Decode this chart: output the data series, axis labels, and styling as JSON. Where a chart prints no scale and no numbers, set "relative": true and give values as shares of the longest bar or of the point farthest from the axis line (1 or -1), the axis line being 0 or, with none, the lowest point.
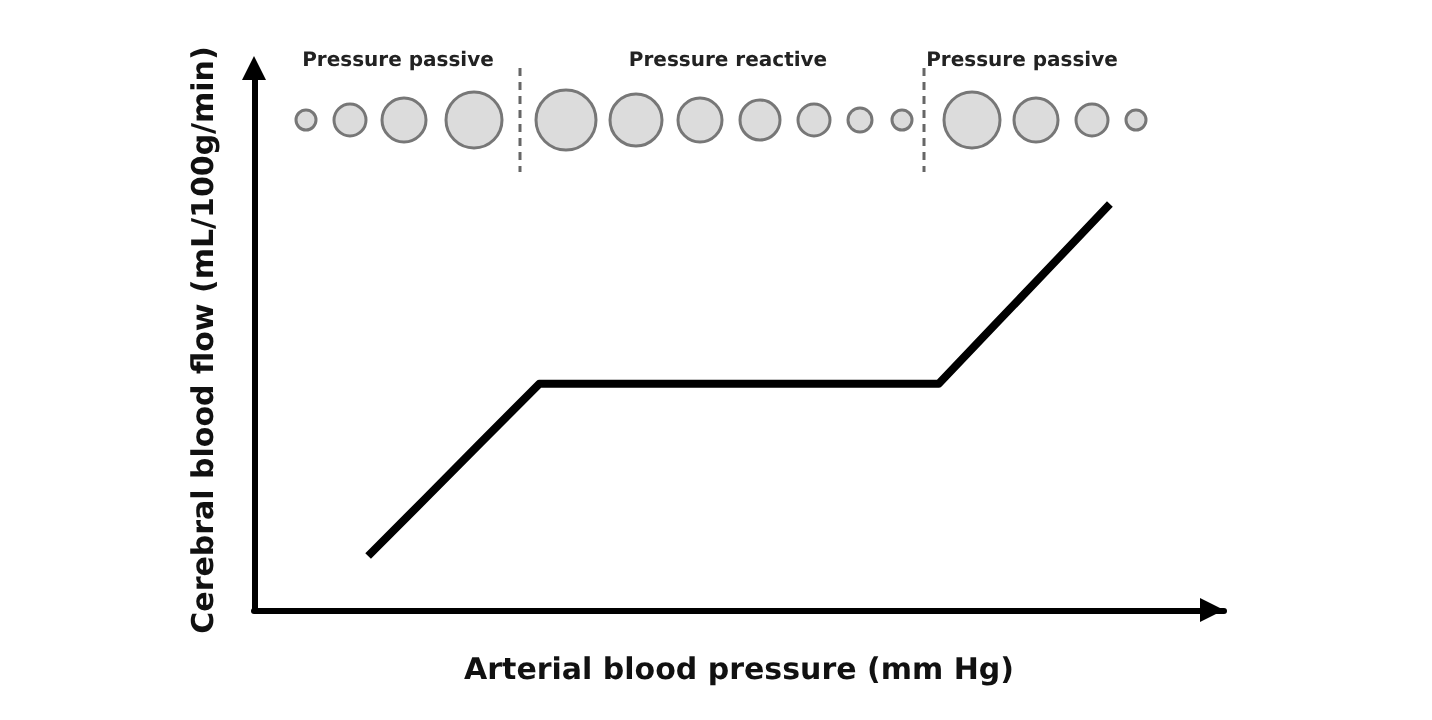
{
  "chart_data": {
    "type": "line",
    "relative": true,
    "xlabel": "Arterial blood pressure (mm Hg)",
    "ylabel": "Cerebral blood flow (mL/100g/min)",
    "annotations": [
      "Pressure passive",
      "Pressure reactive",
      "Pressure passive"
    ],
    "categories": [
      null,
      null,
      null,
      null,
      null,
      null,
      null,
      null,
      null,
      null,
      null,
      null,
      null,
      null,
      null,
      null,
      null,
      null
    ],
    "series": [
      {
        "color": "#000000",
        "values": [
          null,
          null,
          0.133,
          0.274,
          0.416,
          0.557,
          0.557,
          0.557,
          0.557,
          0.557,
          0.557,
          0.557,
          0.557,
          0.705,
          0.852,
          1,
          null,
          null
        ]
      }
    ],
    "marker": "none",
    "line_style": "solid"
  }
}
